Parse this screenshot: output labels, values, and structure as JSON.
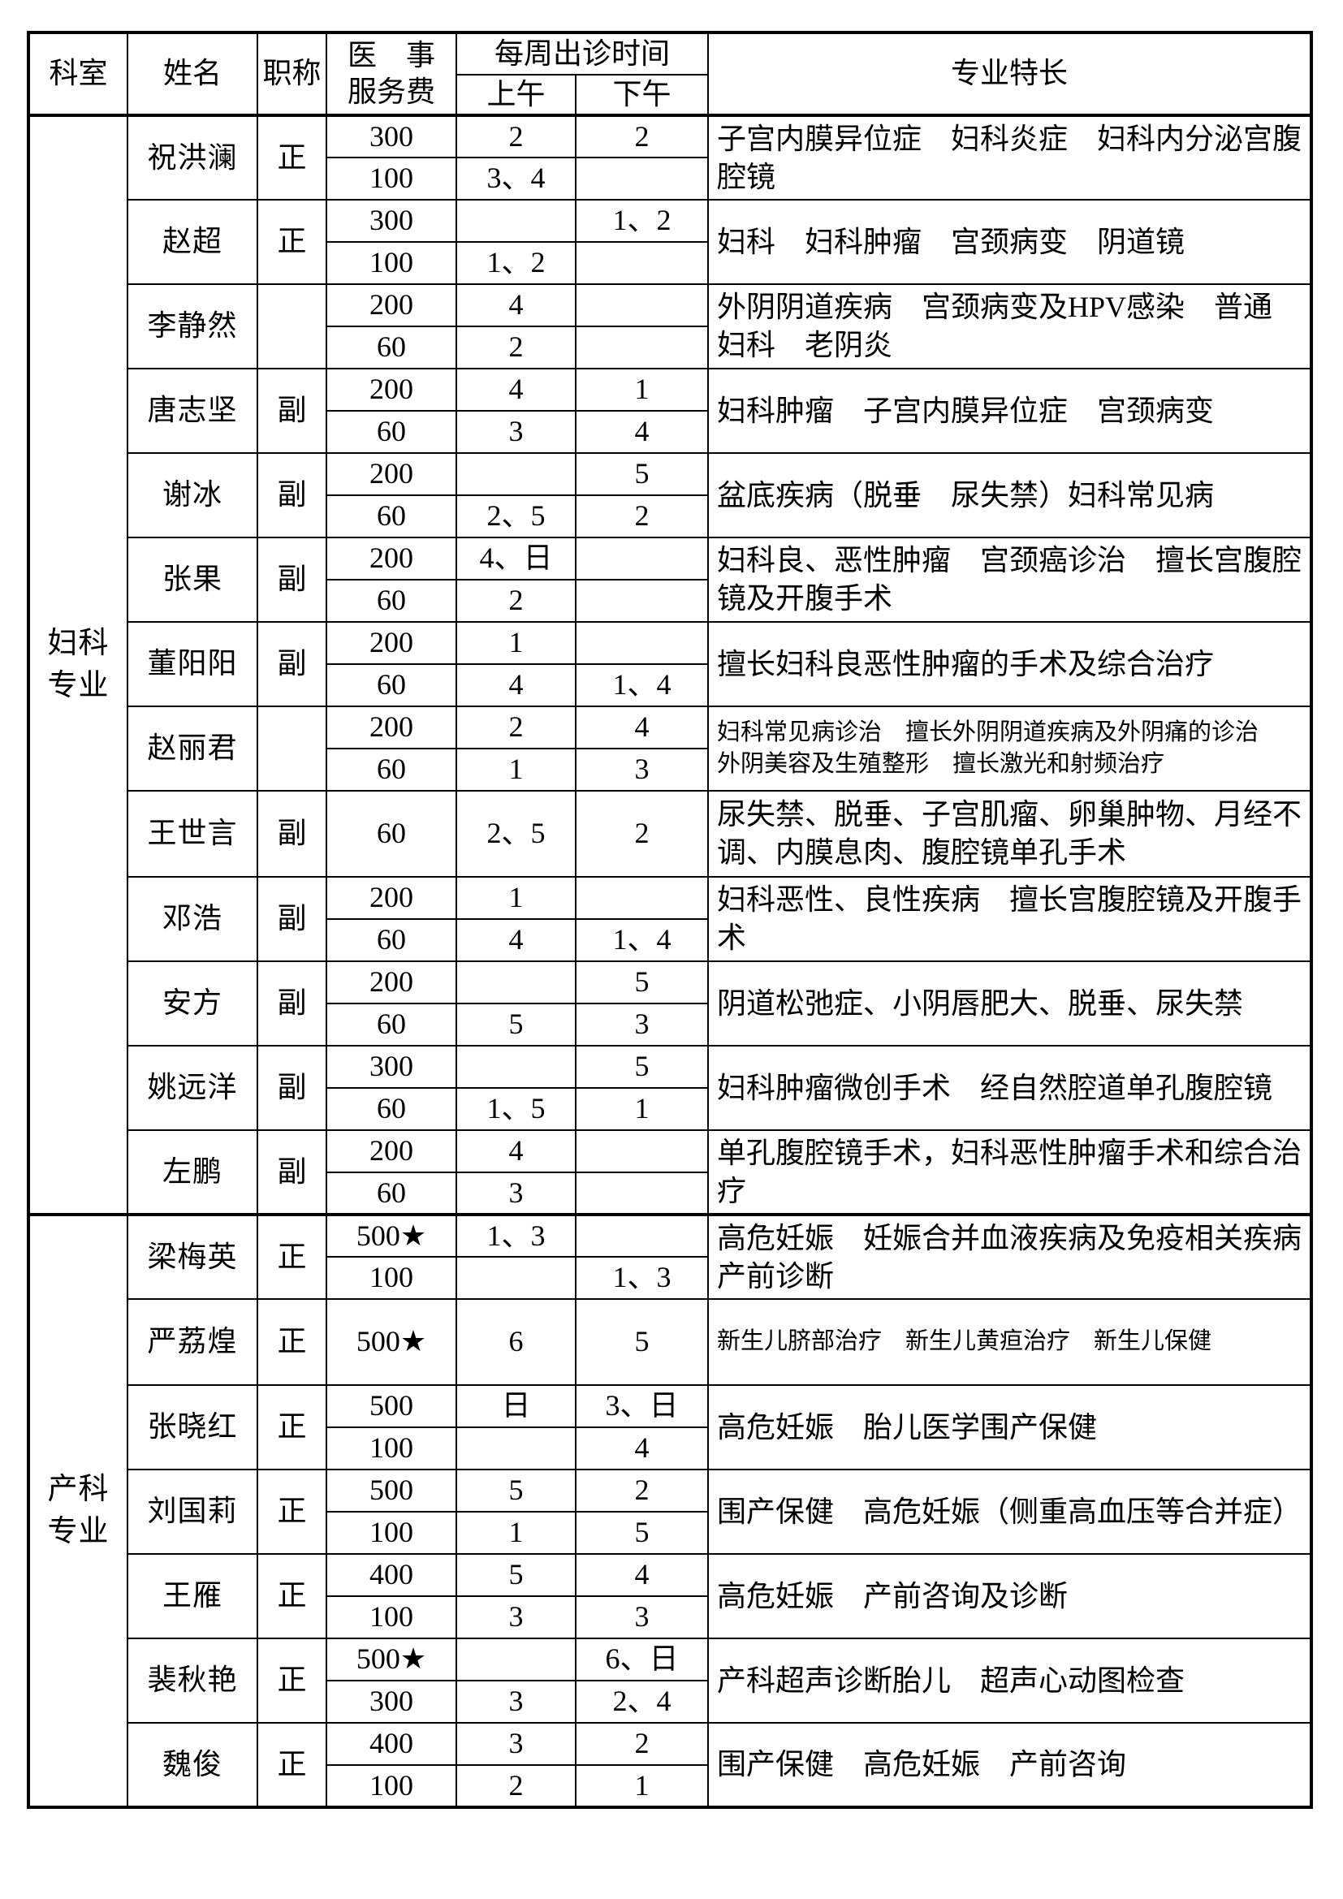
{
  "table": {
    "header": {
      "col_department": "科室",
      "col_name": "姓名",
      "col_title": "职称",
      "col_fee_line1": "医　事",
      "col_fee_line2": "服务费",
      "col_schedule": "每周出诊时间",
      "col_am": "上午",
      "col_pm": "下午",
      "col_specialty": "专业特长"
    },
    "sections": [
      {
        "department": "妇科专业",
        "doctors": [
          {
            "name": "祝洪澜",
            "title": "正",
            "slots": [
              {
                "fee": "300",
                "am": "2",
                "pm": "2"
              },
              {
                "fee": "100",
                "am": "3、4",
                "pm": ""
              }
            ],
            "specialty": "子宫内膜异位症　妇科炎症　妇科内分泌宫腹腔镜"
          },
          {
            "name": "赵超",
            "title": "正",
            "slots": [
              {
                "fee": "300",
                "am": "",
                "pm": "1、2"
              },
              {
                "fee": "100",
                "am": "1、2",
                "pm": ""
              }
            ],
            "specialty": "妇科　妇科肿瘤　宫颈病变　阴道镜"
          },
          {
            "name": "李静然",
            "title": "",
            "slots": [
              {
                "fee": "200",
                "am": "4",
                "pm": ""
              },
              {
                "fee": "60",
                "am": "2",
                "pm": ""
              }
            ],
            "specialty": "外阴阴道疾病　宫颈病变及HPV感染　普通妇科　老阴炎"
          },
          {
            "name": "唐志坚",
            "title": "副",
            "slots": [
              {
                "fee": "200",
                "am": "4",
                "pm": "1"
              },
              {
                "fee": "60",
                "am": "3",
                "pm": "4"
              }
            ],
            "specialty": "妇科肿瘤　子宫内膜异位症　宫颈病变"
          },
          {
            "name": "谢冰",
            "title": "副",
            "slots": [
              {
                "fee": "200",
                "am": "",
                "pm": "5"
              },
              {
                "fee": "60",
                "am": "2、5",
                "pm": "2"
              }
            ],
            "specialty": "盆底疾病（脱垂　尿失禁）妇科常见病"
          },
          {
            "name": "张果",
            "title": "副",
            "slots": [
              {
                "fee": "200",
                "am": "4、日",
                "pm": ""
              },
              {
                "fee": "60",
                "am": "2",
                "pm": ""
              }
            ],
            "specialty": "妇科良、恶性肿瘤　宫颈癌诊治　擅长宫腹腔镜及开腹手术"
          },
          {
            "name": "董阳阳",
            "title": "副",
            "slots": [
              {
                "fee": "200",
                "am": "1",
                "pm": ""
              },
              {
                "fee": "60",
                "am": "4",
                "pm": "1、4"
              }
            ],
            "specialty": "擅长妇科良恶性肿瘤的手术及综合治疗"
          },
          {
            "name": "赵丽君",
            "title": "",
            "slots": [
              {
                "fee": "200",
                "am": "2",
                "pm": "4"
              },
              {
                "fee": "60",
                "am": "1",
                "pm": "3"
              }
            ],
            "specialty": "妇科常见病诊治　擅长外阴阴道疾病及外阴痛的诊治　外阴美容及生殖整形　擅长激光和射频治疗",
            "specialty_small": true
          },
          {
            "name": "王世言",
            "title": "副",
            "slots": [
              {
                "fee": "60",
                "am": "2、5",
                "pm": "2"
              }
            ],
            "specialty": "尿失禁、脱垂、子宫肌瘤、卵巢肿物、月经不调、内膜息肉、腹腔镜单孔手术"
          },
          {
            "name": "邓浩",
            "title": "副",
            "slots": [
              {
                "fee": "200",
                "am": "1",
                "pm": ""
              },
              {
                "fee": "60",
                "am": "4",
                "pm": "1、4"
              }
            ],
            "specialty": "妇科恶性、良性疾病　擅长宫腹腔镜及开腹手术"
          },
          {
            "name": "安方",
            "title": "副",
            "slots": [
              {
                "fee": "200",
                "am": "",
                "pm": "5"
              },
              {
                "fee": "60",
                "am": "5",
                "pm": "3"
              }
            ],
            "specialty": "阴道松弛症、小阴唇肥大、脱垂、尿失禁"
          },
          {
            "name": "姚远洋",
            "title": "副",
            "slots": [
              {
                "fee": "300",
                "am": "",
                "pm": "5"
              },
              {
                "fee": "60",
                "am": "1、5",
                "pm": "1"
              }
            ],
            "specialty": "妇科肿瘤微创手术　经自然腔道单孔腹腔镜"
          },
          {
            "name": "左鹏",
            "title": "副",
            "slots": [
              {
                "fee": "200",
                "am": "4",
                "pm": ""
              },
              {
                "fee": "60",
                "am": "3",
                "pm": ""
              }
            ],
            "specialty": "单孔腹腔镜手术，妇科恶性肿瘤手术和综合治疗"
          }
        ]
      },
      {
        "department": "产科专业",
        "doctors": [
          {
            "name": "梁梅英",
            "title": "正",
            "slots": [
              {
                "fee": "500★",
                "am": "1、3",
                "pm": ""
              },
              {
                "fee": "100",
                "am": "",
                "pm": "1、3"
              }
            ],
            "specialty": "高危妊娠　妊娠合并血液疾病及免疫相关疾病　产前诊断"
          },
          {
            "name": "严荔煌",
            "title": "正",
            "slots": [
              {
                "fee": "500★",
                "am": "6",
                "pm": "5"
              }
            ],
            "specialty": "新生儿脐部治疗　新生儿黄疸治疗　新生儿保健",
            "specialty_small": true
          },
          {
            "name": "张晓红",
            "title": "正",
            "slots": [
              {
                "fee": "500",
                "am": "日",
                "pm": "3、日"
              },
              {
                "fee": "100",
                "am": "",
                "pm": "4"
              }
            ],
            "specialty": "高危妊娠　胎儿医学围产保健"
          },
          {
            "name": "刘国莉",
            "title": "正",
            "slots": [
              {
                "fee": "500",
                "am": "5",
                "pm": "2"
              },
              {
                "fee": "100",
                "am": "1",
                "pm": "5"
              }
            ],
            "specialty": "围产保健　高危妊娠（侧重高血压等合并症）"
          },
          {
            "name": "王雁",
            "title": "正",
            "slots": [
              {
                "fee": "400",
                "am": "5",
                "pm": "4"
              },
              {
                "fee": "100",
                "am": "3",
                "pm": "3"
              }
            ],
            "specialty": "高危妊娠　产前咨询及诊断"
          },
          {
            "name": "裴秋艳",
            "title": "正",
            "slots": [
              {
                "fee": "500★",
                "am": "",
                "pm": "6、日"
              },
              {
                "fee": "300",
                "am": "3",
                "pm": "2、4"
              }
            ],
            "specialty": "产科超声诊断胎儿　超声心动图检查"
          },
          {
            "name": "魏俊",
            "title": "正",
            "slots": [
              {
                "fee": "400",
                "am": "3",
                "pm": "2"
              },
              {
                "fee": "100",
                "am": "2",
                "pm": "1"
              }
            ],
            "specialty": "围产保健　高危妊娠　产前咨询"
          }
        ]
      }
    ]
  }
}
